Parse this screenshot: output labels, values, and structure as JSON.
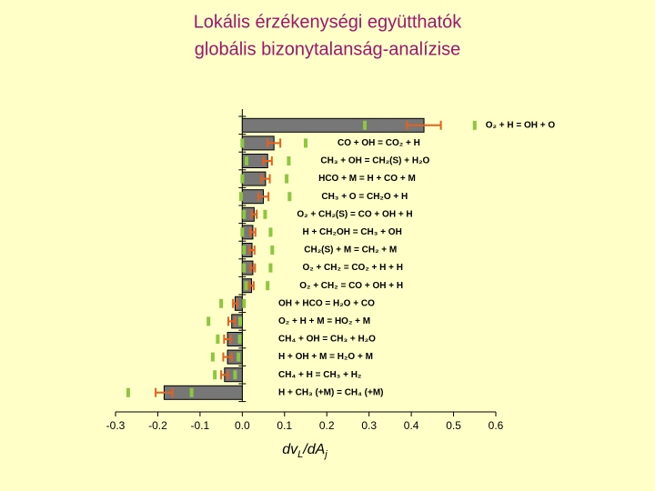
{
  "chart_data": {
    "type": "bar",
    "orientation": "horizontal",
    "title": [
      "Lokális érzékenységi együtthatók",
      "globális bizonytalanság-analízise"
    ],
    "xlabel_parts": [
      "dv",
      "L",
      "/dA",
      "j"
    ],
    "categories": [
      "O₂ + H = OH + O",
      "CO + OH = CO₂ + H",
      "CH₃ + OH = CH₂(S) + H₂O",
      "HCO + M = H + CO + M",
      "CH₃ + O = CH₂O + H",
      "O₂ + CH₂(S) = CO + OH + H",
      "H + CH₂OH = CH₃ + OH",
      "CH₂(S) + M = CH₂ + M",
      "O₂ + CH₂ = CO₂ + H + H",
      "O₂ + CH₂ = CO + OH + H",
      "OH + HCO = H₂O + CO",
      "O₂ + H + M = HO₂ + M",
      "CH₄ + OH = CH₃ + H₂O",
      "H + OH + M = H₂O + M",
      "CH₄ + H = CH₃ + H₂",
      "H + CH₃ (+M) = CH₄ (+M)"
    ],
    "values": [
      0.43,
      0.075,
      0.06,
      0.055,
      0.05,
      0.028,
      0.025,
      0.023,
      0.025,
      0.022,
      -0.017,
      -0.025,
      -0.035,
      -0.035,
      -0.042,
      -0.185
    ],
    "errors": [
      0.04,
      0.015,
      0.01,
      0.01,
      0.012,
      0.006,
      0.006,
      0.006,
      0.005,
      0.005,
      0.005,
      0.008,
      0.008,
      0.01,
      0.008,
      0.02
    ],
    "lower": [
      0.29,
      0.0,
      0.01,
      0.0,
      -0.003,
      0.004,
      0.0,
      0.004,
      0.004,
      0.009,
      -0.05,
      -0.08,
      -0.058,
      -0.07,
      -0.065,
      -0.27
    ],
    "upper": [
      0.55,
      0.15,
      0.11,
      0.105,
      0.112,
      0.054,
      0.067,
      0.071,
      0.067,
      0.06,
      0.004,
      -0.005,
      -0.006,
      -0.009,
      -0.017,
      -0.12
    ],
    "bar_color": "#777777",
    "error_color": "#e8601c",
    "range_color": "#8dc63f",
    "xlim": [
      -0.3,
      0.6
    ],
    "xticks": [
      -0.3,
      -0.2,
      -0.1,
      {
        "value": 0,
        "label": "0.0"
      },
      0.1,
      0.2,
      0.3,
      0.4,
      0.5,
      0.6
    ]
  }
}
